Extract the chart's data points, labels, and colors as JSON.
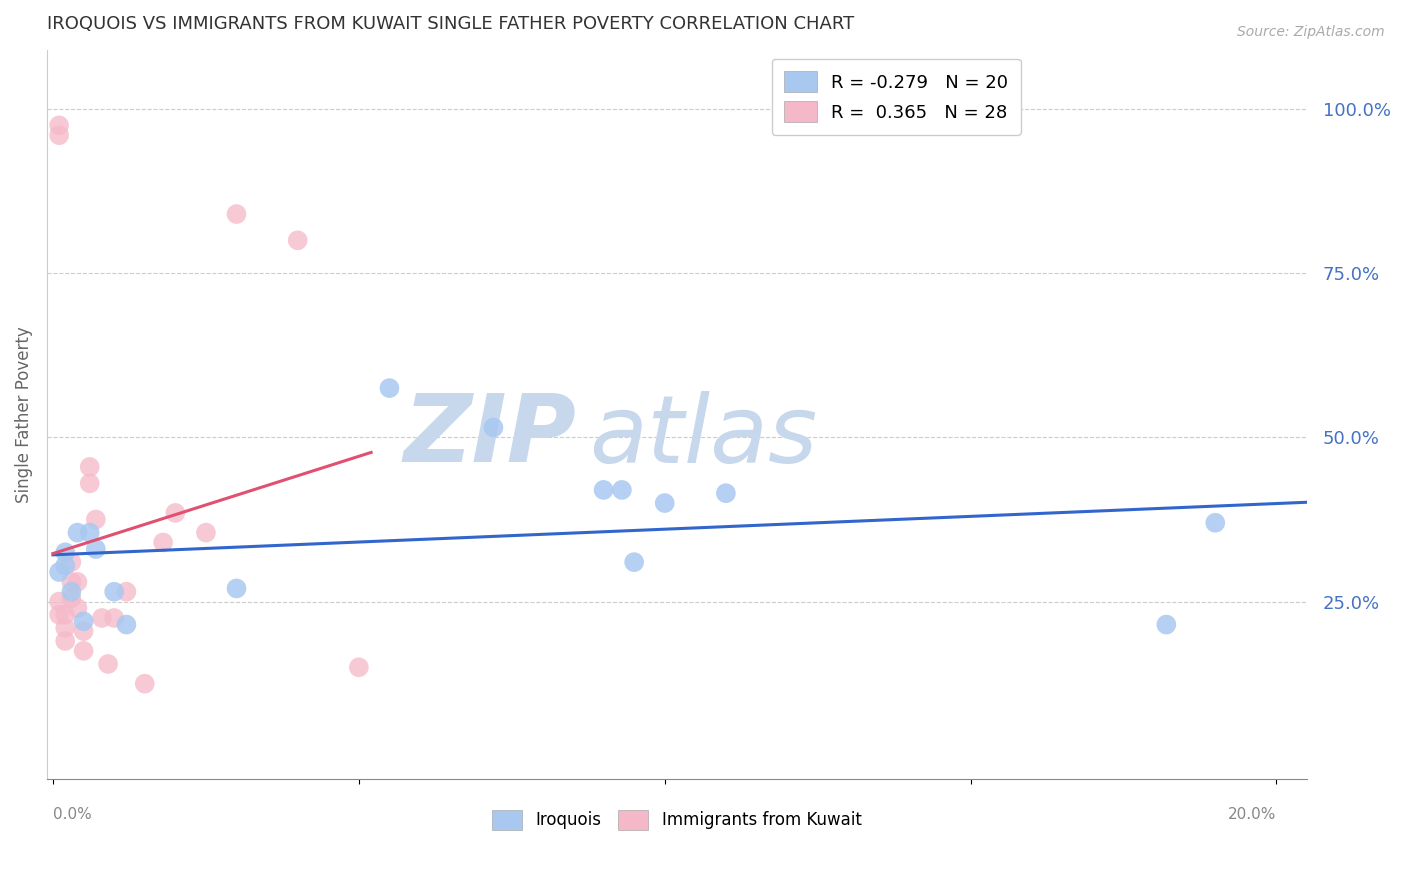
{
  "title": "IROQUOIS VS IMMIGRANTS FROM KUWAIT SINGLE FATHER POVERTY CORRELATION CHART",
  "source": "Source: ZipAtlas.com",
  "ylabel": "Single Father Poverty",
  "y_tick_labels": [
    "100.0%",
    "75.0%",
    "50.0%",
    "25.0%"
  ],
  "y_tick_values": [
    1.0,
    0.75,
    0.5,
    0.25
  ],
  "xlim": [
    -0.001,
    0.205
  ],
  "ylim": [
    -0.02,
    1.09
  ],
  "iroquois_x": [
    0.001,
    0.002,
    0.002,
    0.003,
    0.004,
    0.005,
    0.006,
    0.007,
    0.01,
    0.012,
    0.03,
    0.055,
    0.072,
    0.09,
    0.093,
    0.1,
    0.11,
    0.095,
    0.182,
    0.19
  ],
  "iroquois_y": [
    0.295,
    0.305,
    0.325,
    0.265,
    0.355,
    0.22,
    0.355,
    0.33,
    0.265,
    0.215,
    0.27,
    0.575,
    0.515,
    0.42,
    0.42,
    0.4,
    0.415,
    0.31,
    0.215,
    0.37
  ],
  "kuwait_x": [
    0.001,
    0.001,
    0.001,
    0.001,
    0.002,
    0.002,
    0.002,
    0.003,
    0.003,
    0.003,
    0.004,
    0.004,
    0.005,
    0.005,
    0.006,
    0.006,
    0.007,
    0.008,
    0.009,
    0.01,
    0.012,
    0.015,
    0.018,
    0.02,
    0.025,
    0.03,
    0.04,
    0.05
  ],
  "kuwait_y": [
    0.975,
    0.96,
    0.23,
    0.25,
    0.21,
    0.23,
    0.19,
    0.28,
    0.31,
    0.255,
    0.24,
    0.28,
    0.175,
    0.205,
    0.455,
    0.43,
    0.375,
    0.225,
    0.155,
    0.225,
    0.265,
    0.125,
    0.34,
    0.385,
    0.355,
    0.84,
    0.8,
    0.15
  ],
  "iroquois_color": "#a8c8f0",
  "kuwait_color": "#f5b8c8",
  "iroquois_line_color": "#3366cc",
  "kuwait_line_color": "#e05070",
  "watermark_zip_color": "#c8d8ec",
  "watermark_atlas_color": "#c8d8ec",
  "grid_color": "#cccccc",
  "title_color": "#333333",
  "right_axis_color": "#4472c4",
  "source_color": "#aaaaaa",
  "axis_color": "#888888"
}
